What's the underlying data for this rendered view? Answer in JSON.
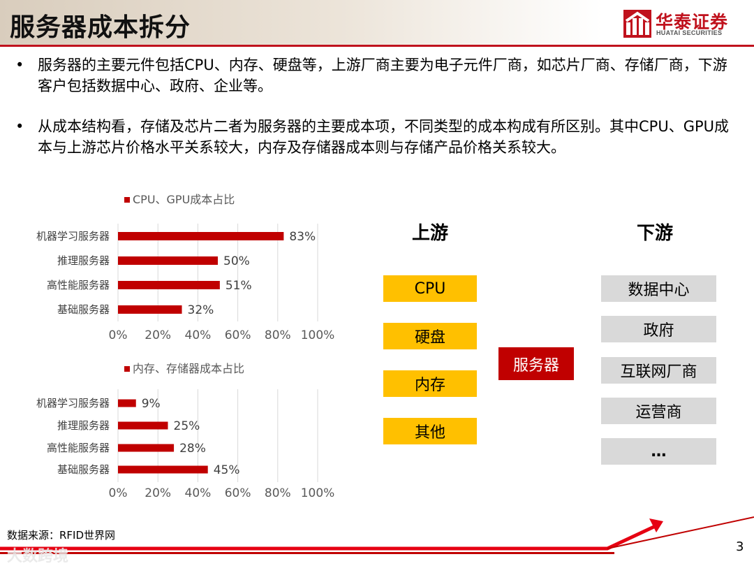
{
  "header": {
    "title": "服务器成本拆分",
    "logo_cn": "华泰证券",
    "logo_en": "HUATAI SECURITIES"
  },
  "bullets": [
    {
      "symbol": "•",
      "text": "服务器的主要元件包括CPU、内存、硬盘等，上游厂商主要为电子元件厂商，如芯片厂商、存储厂商，下游客户包括数据中心、政府、企业等。"
    },
    {
      "symbol": "•",
      "text": "从成本结构看，存储及芯片二者为服务器的主要成本项，不同类型的成本构成有所区别。其中CPU、GPU成本与上游芯片价格水平关系较大，内存及存储器成本则与存储产品价格关系较大。"
    }
  ],
  "chart_data": [
    {
      "type": "bar",
      "orientation": "horizontal",
      "series": [
        {
          "name": "CPU、GPU成本占比",
          "values": [
            83,
            50,
            51,
            32
          ],
          "labels": [
            "83%",
            "50%",
            "51%",
            "32%"
          ]
        }
      ],
      "categories": [
        "机器学习服务器",
        "推理服务器",
        "高性能服务器",
        "基础服务器"
      ],
      "xlim": [
        0,
        100
      ],
      "xticks": [
        "0%",
        "20%",
        "40%",
        "60%",
        "80%",
        "100%"
      ],
      "grid": "vertical",
      "legend": "top",
      "color": "#c00000"
    },
    {
      "type": "bar",
      "orientation": "horizontal",
      "series": [
        {
          "name": "内存、存储器成本占比",
          "values": [
            9,
            25,
            28,
            45
          ],
          "labels": [
            "9%",
            "25%",
            "28%",
            "45%"
          ]
        }
      ],
      "categories": [
        "机器学习服务器",
        "推理服务器",
        "高性能服务器",
        "基础服务器"
      ],
      "xlim": [
        0,
        100
      ],
      "xticks": [
        "0%",
        "20%",
        "40%",
        "60%",
        "80%",
        "100%"
      ],
      "grid": "vertical",
      "legend": "top",
      "color": "#c00000"
    }
  ],
  "flow": {
    "upstream_heading": "上游",
    "downstream_heading": "下游",
    "upstream": [
      "CPU",
      "硬盘",
      "内存",
      "其他"
    ],
    "center": "服务器",
    "downstream": [
      "数据中心",
      "政府",
      "互联网厂商",
      "运营商",
      "…"
    ],
    "colors": {
      "upstream": "#ffc000",
      "center": "#c00000",
      "downstream": "#d9d9d9"
    }
  },
  "footer": {
    "source": "数据来源：RFID世界网",
    "watermark": "大数跨境",
    "page": "3"
  }
}
